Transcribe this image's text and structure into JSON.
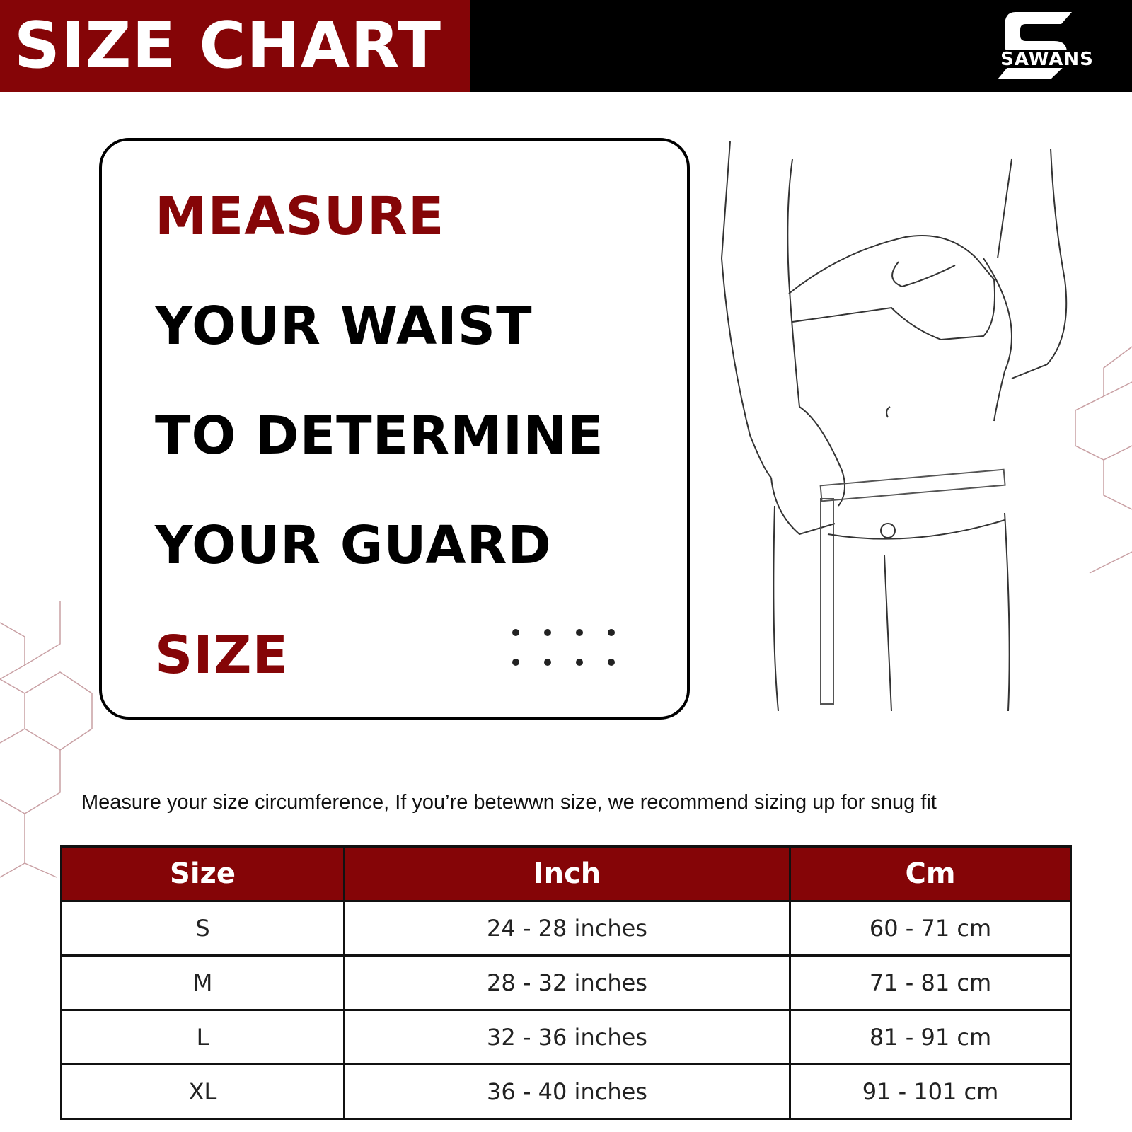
{
  "header": {
    "title": "SIZE CHART",
    "logo_text": "SAWANS"
  },
  "card": {
    "lines": [
      "MEASURE",
      "YOUR WAIST",
      "TO DETERMINE",
      "YOUR GUARD",
      "SIZE"
    ]
  },
  "note": "Measure your size circumference, If you’re betewwn size, we recommend sizing up for snug fit",
  "table": {
    "headers": [
      "Size",
      "Inch",
      "Cm"
    ],
    "rows": [
      [
        "S",
        "24 - 28 inches",
        "60 - 71 cm"
      ],
      [
        "M",
        "28 - 32 inches",
        "71 - 81 cm"
      ],
      [
        "L",
        "32 - 36 inches",
        "81 - 91 cm"
      ],
      [
        "XL",
        "36 - 40 inches",
        "91 - 101 cm"
      ]
    ]
  },
  "colors": {
    "brand_red": "#850507",
    "black": "#000000"
  }
}
